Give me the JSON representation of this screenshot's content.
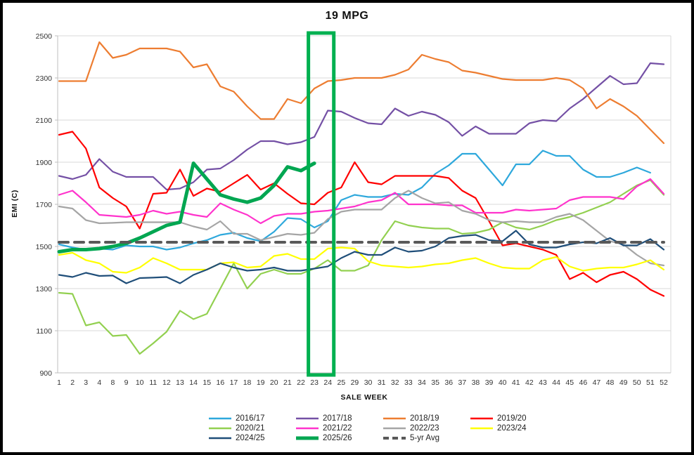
{
  "chart_data": {
    "type": "line",
    "title": "19 MPG",
    "xlabel": "SALE WEEK",
    "ylabel": "EMI (C)",
    "ylim": [
      900,
      2500
    ],
    "ytick_step": 200,
    "grid": true,
    "legend_position": "bottom",
    "categories": [
      1,
      2,
      3,
      4,
      8,
      9,
      10,
      11,
      12,
      13,
      14,
      15,
      16,
      17,
      18,
      19,
      20,
      21,
      22,
      23,
      24,
      25,
      29,
      30,
      31,
      32,
      33,
      34,
      35,
      36,
      37,
      38,
      39,
      40,
      41,
      42,
      43,
      44,
      45,
      46,
      47,
      48,
      49,
      50,
      51,
      52
    ],
    "highlight": {
      "from": 23,
      "to": 24,
      "color": "#00B050"
    },
    "series": [
      {
        "name": "2016/17",
        "color": "#2EA8DC",
        "width": 2.2,
        "values": [
          1510,
          1495,
          1485,
          1490,
          1485,
          1505,
          1500,
          1500,
          1485,
          1495,
          1515,
          1530,
          1555,
          1565,
          1540,
          1525,
          1570,
          1635,
          1630,
          1590,
          1620,
          1720,
          1745,
          1735,
          1735,
          1750,
          1745,
          1780,
          1845,
          1885,
          1940,
          1940,
          1865,
          1790,
          1890,
          1890,
          1955,
          1930,
          1930,
          1865,
          1830,
          1830,
          1850,
          1875,
          1850,
          null
        ]
      },
      {
        "name": "2017/18",
        "color": "#7450A5",
        "width": 2.2,
        "values": [
          1835,
          1820,
          1840,
          1915,
          1855,
          1830,
          1830,
          1830,
          1770,
          1775,
          1805,
          1865,
          1870,
          1910,
          1960,
          2000,
          2000,
          1985,
          1995,
          2020,
          2145,
          2140,
          2110,
          2085,
          2080,
          2155,
          2120,
          2140,
          2125,
          2090,
          2025,
          2070,
          2035,
          2035,
          2035,
          2085,
          2100,
          2095,
          2155,
          2200,
          2255,
          2310,
          2270,
          2275,
          2370,
          2365
        ]
      },
      {
        "name": "2018/19",
        "color": "#ED7D31",
        "width": 2.2,
        "values": [
          2285,
          2285,
          2285,
          2470,
          2395,
          2410,
          2440,
          2440,
          2440,
          2425,
          2350,
          2365,
          2260,
          2235,
          2165,
          2105,
          2105,
          2200,
          2180,
          2250,
          2285,
          2290,
          2300,
          2300,
          2300,
          2315,
          2340,
          2410,
          2390,
          2375,
          2335,
          2325,
          2310,
          2295,
          2290,
          2290,
          2290,
          2300,
          2290,
          2250,
          2155,
          2200,
          2165,
          2120,
          2055,
          1990
        ]
      },
      {
        "name": "2019/20",
        "color": "#FF0000",
        "width": 2.2,
        "values": [
          2030,
          2045,
          1965,
          1780,
          1730,
          1690,
          1585,
          1750,
          1755,
          1865,
          1740,
          1775,
          1760,
          1800,
          1840,
          1770,
          1800,
          1750,
          1705,
          1700,
          1755,
          1780,
          1900,
          1805,
          1795,
          1835,
          1835,
          1835,
          1835,
          1825,
          1765,
          1730,
          1620,
          1505,
          1515,
          1500,
          1485,
          1460,
          1345,
          1375,
          1330,
          1365,
          1380,
          1345,
          1295,
          1265
        ]
      },
      {
        "name": "2020/21",
        "color": "#92D050",
        "width": 2.2,
        "values": [
          1280,
          1275,
          1125,
          1140,
          1075,
          1080,
          990,
          1040,
          1095,
          1195,
          1155,
          1180,
          1300,
          1420,
          1300,
          1370,
          1390,
          1370,
          1370,
          1395,
          1435,
          1385,
          1385,
          1410,
          1530,
          1620,
          1600,
          1590,
          1585,
          1585,
          1560,
          1565,
          1580,
          1615,
          1590,
          1580,
          1600,
          1625,
          1640,
          1660,
          1685,
          1710,
          1750,
          1790,
          1815,
          1745
        ]
      },
      {
        "name": "2021/22",
        "color": "#FF33CC",
        "width": 2.2,
        "values": [
          1745,
          1765,
          1710,
          1650,
          1645,
          1640,
          1650,
          1670,
          1655,
          1665,
          1650,
          1640,
          1705,
          1675,
          1650,
          1610,
          1645,
          1655,
          1655,
          1665,
          1670,
          1680,
          1690,
          1710,
          1720,
          1755,
          1700,
          1700,
          1700,
          1695,
          1695,
          1660,
          1660,
          1660,
          1675,
          1670,
          1675,
          1680,
          1720,
          1735,
          1735,
          1735,
          1725,
          1785,
          1820,
          1750
        ]
      },
      {
        "name": "2022/23",
        "color": "#A5A5A5",
        "width": 2.2,
        "values": [
          1690,
          1680,
          1625,
          1610,
          1612,
          1615,
          1615,
          1615,
          1615,
          1615,
          1595,
          1580,
          1620,
          1560,
          1560,
          1530,
          1545,
          1560,
          1555,
          1565,
          1630,
          1665,
          1675,
          1675,
          1675,
          1730,
          1765,
          1730,
          1705,
          1710,
          1670,
          1655,
          1625,
          1615,
          1620,
          1615,
          1615,
          1640,
          1655,
          1625,
          1575,
          1525,
          1510,
          1460,
          1420,
          1410
        ]
      },
      {
        "name": "2023/24",
        "color": "#FFFF00",
        "width": 2.2,
        "values": [
          1460,
          1470,
          1435,
          1420,
          1380,
          1375,
          1400,
          1445,
          1420,
          1390,
          1390,
          1390,
          1420,
          1425,
          1400,
          1405,
          1455,
          1465,
          1440,
          1440,
          1490,
          1495,
          1490,
          1430,
          1410,
          1405,
          1400,
          1405,
          1415,
          1420,
          1435,
          1445,
          1420,
          1400,
          1395,
          1395,
          1435,
          1450,
          1405,
          1385,
          1395,
          1400,
          1400,
          1415,
          1435,
          1390
        ]
      },
      {
        "name": "2024/25",
        "color": "#1F4E79",
        "width": 2.2,
        "values": [
          1365,
          1355,
          1375,
          1360,
          1362,
          1325,
          1350,
          1352,
          1355,
          1325,
          1365,
          1390,
          1420,
          1400,
          1385,
          1390,
          1400,
          1385,
          1385,
          1395,
          1405,
          1445,
          1475,
          1460,
          1460,
          1495,
          1475,
          1480,
          1500,
          1540,
          1550,
          1555,
          1530,
          1525,
          1575,
          1510,
          1495,
          1495,
          1510,
          1520,
          1515,
          1540,
          1505,
          1505,
          1535,
          1485
        ]
      },
      {
        "name": "2025/26",
        "color": "#00A651",
        "width": 5,
        "values": [
          1475,
          1485,
          1485,
          1490,
          1500,
          1515,
          1540,
          1570,
          1600,
          1615,
          1895,
          1820,
          1745,
          1725,
          1710,
          1730,
          1790,
          1878,
          1860,
          1895,
          null,
          null,
          null,
          null,
          null,
          null,
          null,
          null,
          null,
          null,
          null,
          null,
          null,
          null,
          null,
          null,
          null,
          null,
          null,
          null,
          null,
          null,
          null,
          null,
          null,
          null
        ]
      },
      {
        "name": "5-yr Avg",
        "color": "#595959",
        "width": 4,
        "dash": "13 9",
        "constant": 1520
      }
    ]
  }
}
